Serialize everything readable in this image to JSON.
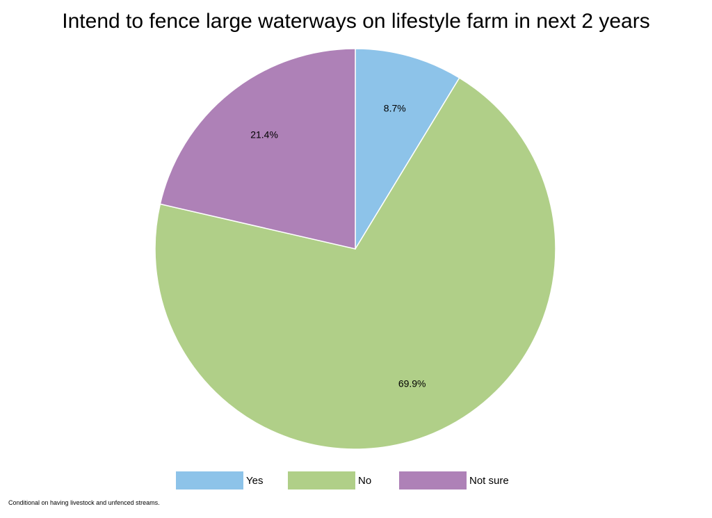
{
  "chart_data": {
    "type": "pie",
    "title": "Intend to fence large waterways on lifestyle farm in next 2 years",
    "slices": [
      {
        "name": "Yes",
        "value": 8.7,
        "label": "8.7%",
        "color": "#8DC3E9"
      },
      {
        "name": "No",
        "value": 69.9,
        "label": "69.9%",
        "color": "#B0CF88"
      },
      {
        "name": "Not sure",
        "value": 21.4,
        "label": "21.4%",
        "color": "#AE81B7"
      }
    ],
    "legend_position": "bottom",
    "start_angle": "12 o'clock, clockwise"
  },
  "footnote": "Conditional on having livestock and unfenced streams."
}
